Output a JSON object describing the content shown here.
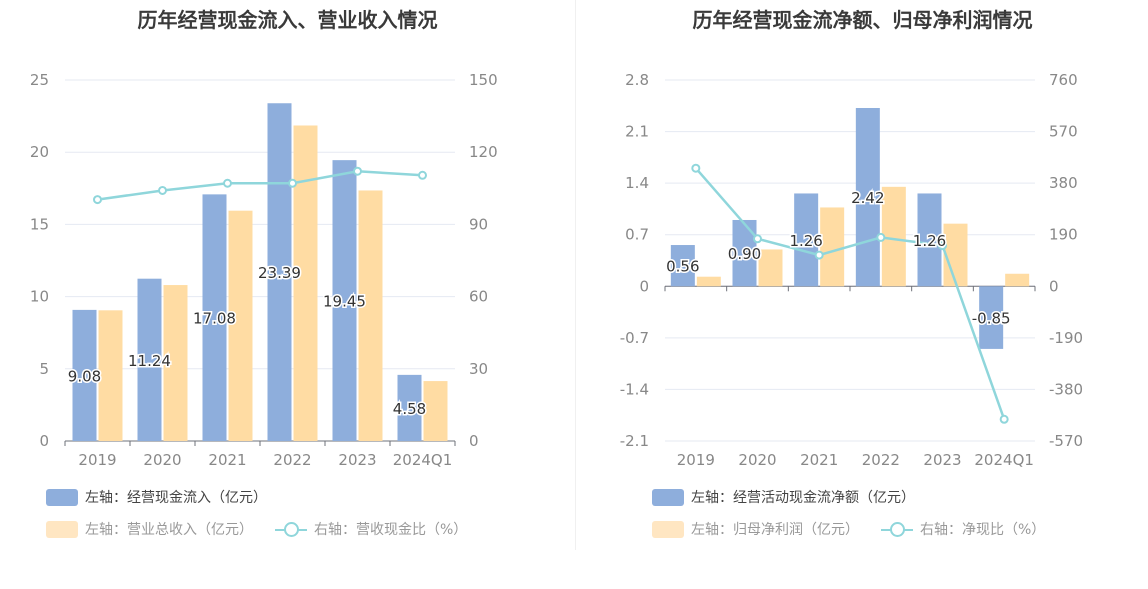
{
  "colors": {
    "blue": "#8eaedc",
    "orange": "#ffdca3",
    "line": "#8fd6db",
    "grid": "#e5e9f2",
    "axis": "#888888",
    "label": "#333333"
  },
  "chart_data": [
    {
      "type": "bar",
      "title": "历年经营现金流入、营业收入情况",
      "categories": [
        "2019",
        "2020",
        "2021",
        "2022",
        "2023",
        "2024Q1"
      ],
      "left_axis": {
        "ticks": [
          "0",
          "5",
          "10",
          "15",
          "20",
          "25"
        ],
        "min": 0,
        "max": 25
      },
      "right_axis": {
        "ticks": [
          "0",
          "30",
          "60",
          "90",
          "120",
          "150"
        ],
        "min": 0,
        "max": 150
      },
      "series": [
        {
          "name": "左轴：经营现金流入（亿元）",
          "axis": "left",
          "type": "bar",
          "color": "#8eaedc",
          "values": [
            9.08,
            11.24,
            17.08,
            23.39,
            19.45,
            4.58
          ],
          "labels": [
            "9.08",
            "11.24",
            "17.08",
            "23.39",
            "19.45",
            "4.58"
          ]
        },
        {
          "name": "左轴：营业总收入（亿元）",
          "axis": "left",
          "type": "bar",
          "color": "#ffdca3",
          "values": [
            9.05,
            10.8,
            15.95,
            21.85,
            17.35,
            4.15
          ]
        },
        {
          "name": "右轴：营收现金比（%）",
          "axis": "right",
          "type": "line",
          "color": "#8fd6db",
          "values": [
            100.3,
            104.1,
            107.1,
            107.1,
            112.1,
            110.4
          ]
        }
      ]
    },
    {
      "type": "bar",
      "title": "历年经营现金流净额、归母净利润情况",
      "categories": [
        "2019",
        "2020",
        "2021",
        "2022",
        "2023",
        "2024Q1"
      ],
      "left_axis": {
        "ticks": [
          "-2.1",
          "-1.4",
          "-0.7",
          "0",
          "0.7",
          "1.4",
          "2.1",
          "2.8"
        ],
        "min": -2.1,
        "max": 2.8
      },
      "right_axis": {
        "ticks": [
          "-570",
          "-380",
          "-190",
          "0",
          "190",
          "380",
          "570",
          "760"
        ],
        "min": -570,
        "max": 760
      },
      "series": [
        {
          "name": "左轴：经营活动现金流净额（亿元）",
          "axis": "left",
          "type": "bar",
          "color": "#8eaedc",
          "values": [
            0.56,
            0.9,
            1.26,
            2.42,
            1.26,
            -0.85
          ],
          "labels": [
            "0.56",
            "0.90",
            "1.26",
            "2.42",
            "1.26",
            "-0.85"
          ]
        },
        {
          "name": "左轴：归母净利润（亿元）",
          "axis": "left",
          "type": "bar",
          "color": "#ffdca3",
          "values": [
            0.13,
            0.5,
            1.07,
            1.35,
            0.85,
            0.17
          ]
        },
        {
          "name": "右轴：净现比（%）",
          "axis": "right",
          "type": "line",
          "color": "#8fd6db",
          "values": [
            435,
            175,
            115,
            180,
            150,
            -490
          ]
        }
      ]
    }
  ]
}
